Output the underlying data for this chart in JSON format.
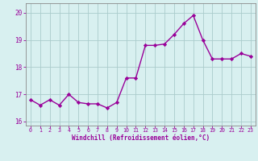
{
  "x": [
    0,
    1,
    2,
    3,
    4,
    5,
    6,
    7,
    8,
    9,
    10,
    11,
    12,
    13,
    14,
    15,
    16,
    17,
    18,
    19,
    20,
    21,
    22,
    23
  ],
  "y": [
    16.8,
    16.6,
    16.8,
    16.6,
    17.0,
    16.7,
    16.65,
    16.65,
    16.5,
    16.7,
    17.6,
    17.6,
    18.8,
    18.8,
    18.85,
    19.2,
    19.6,
    19.9,
    19.0,
    18.3,
    18.3,
    18.3,
    18.5,
    18.4
  ],
  "line_color": "#990099",
  "marker": "D",
  "markersize": 2.2,
  "linewidth": 1.0,
  "bg_color": "#d8f0f0",
  "grid_color": "#aacccc",
  "xlabel": "Windchill (Refroidissement éolien,°C)",
  "xlim": [
    -0.5,
    23.5
  ],
  "ylim": [
    15.85,
    20.35
  ],
  "yticks": [
    16,
    17,
    18,
    19,
    20
  ],
  "xticks": [
    0,
    1,
    2,
    3,
    4,
    5,
    6,
    7,
    8,
    9,
    10,
    11,
    12,
    13,
    14,
    15,
    16,
    17,
    18,
    19,
    20,
    21,
    22,
    23
  ],
  "tick_color": "#990099",
  "label_color": "#990099",
  "spine_color": "#888888",
  "xlabel_fontsize": 5.5,
  "xtick_fontsize": 4.8,
  "ytick_fontsize": 5.5
}
